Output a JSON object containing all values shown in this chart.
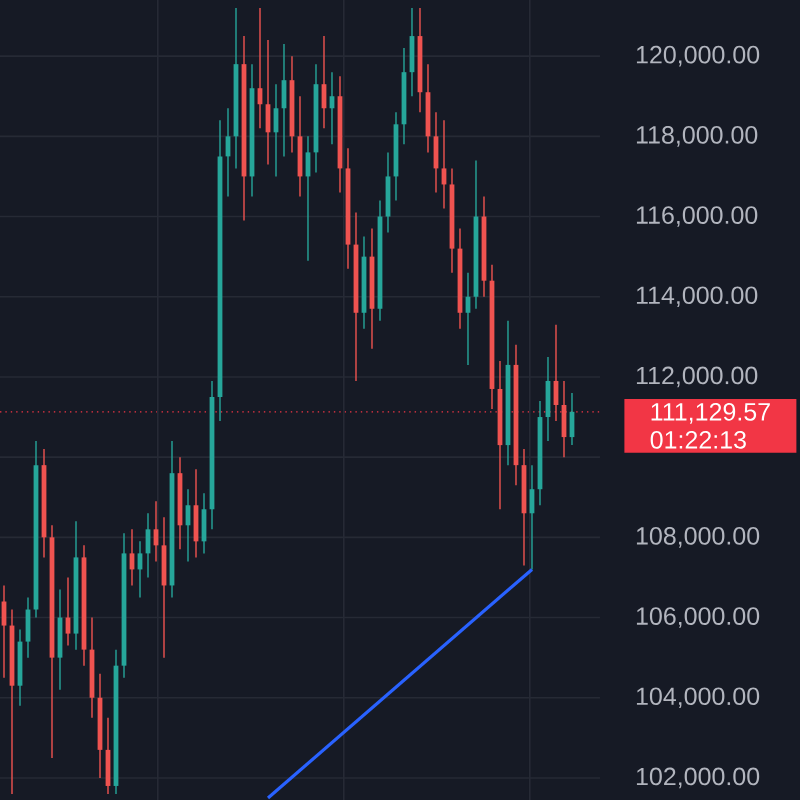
{
  "chart_data": {
    "type": "candlestick",
    "categories": [
      null,
      null,
      null,
      null,
      null,
      null,
      null,
      null,
      null,
      null,
      null,
      null,
      null,
      null,
      null,
      null,
      null,
      null,
      null,
      null,
      null,
      null,
      null,
      null,
      null,
      null,
      null,
      null,
      null,
      null,
      null,
      null,
      null,
      null,
      null,
      null,
      null,
      null,
      null,
      null,
      null,
      null,
      null,
      null,
      null,
      null,
      null,
      null,
      null,
      null,
      null,
      null,
      null,
      null,
      null,
      null,
      null,
      null,
      null,
      null,
      null,
      null,
      null,
      null,
      null,
      null,
      null,
      null,
      null,
      null,
      null,
      null
    ],
    "ohlc": [
      [
        106400,
        106800,
        104500,
        105800
      ],
      [
        105800,
        106200,
        101600,
        104300
      ],
      [
        104300,
        105700,
        103800,
        105400
      ],
      [
        105400,
        106500,
        105000,
        106200
      ],
      [
        106200,
        110400,
        106000,
        109800
      ],
      [
        109800,
        110200,
        107500,
        108000
      ],
      [
        108000,
        108300,
        102500,
        105000
      ],
      [
        105000,
        106700,
        104200,
        106000
      ],
      [
        106000,
        107000,
        105300,
        105600
      ],
      [
        105600,
        108400,
        105200,
        107500
      ],
      [
        107500,
        107800,
        104800,
        105200
      ],
      [
        105200,
        106000,
        103500,
        104000
      ],
      [
        104000,
        104600,
        102000,
        102700
      ],
      [
        102700,
        103500,
        101600,
        101800
      ],
      [
        101800,
        105200,
        101600,
        104800
      ],
      [
        104800,
        108100,
        104500,
        107600
      ],
      [
        107600,
        108200,
        106800,
        107200
      ],
      [
        107200,
        107900,
        106500,
        107600
      ],
      [
        107600,
        108600,
        107000,
        108200
      ],
      [
        108200,
        108900,
        107400,
        107800
      ],
      [
        107800,
        108500,
        105000,
        106800
      ],
      [
        106800,
        110400,
        106500,
        109600
      ],
      [
        109600,
        110000,
        107700,
        108300
      ],
      [
        108300,
        109200,
        107400,
        108800
      ],
      [
        108800,
        109700,
        107500,
        107900
      ],
      [
        107900,
        109100,
        107600,
        108700
      ],
      [
        108700,
        111900,
        108200,
        111500
      ],
      [
        111500,
        118400,
        110900,
        117500
      ],
      [
        117500,
        118700,
        116500,
        118000
      ],
      [
        118000,
        121200,
        117200,
        119800
      ],
      [
        119800,
        120500,
        115900,
        117000
      ],
      [
        117000,
        119800,
        116500,
        119200
      ],
      [
        119200,
        121200,
        118200,
        118800
      ],
      [
        118800,
        120400,
        117300,
        118100
      ],
      [
        118100,
        119300,
        117000,
        118700
      ],
      [
        118700,
        120300,
        117500,
        119400
      ],
      [
        119400,
        120000,
        117600,
        118000
      ],
      [
        118000,
        119000,
        116500,
        117000
      ],
      [
        117000,
        118000,
        114900,
        117600
      ],
      [
        117600,
        119800,
        117100,
        119300
      ],
      [
        119300,
        120500,
        118200,
        118700
      ],
      [
        118700,
        119600,
        117800,
        119000
      ],
      [
        119000,
        119500,
        116600,
        117200
      ],
      [
        117200,
        117700,
        114700,
        115300
      ],
      [
        115300,
        116100,
        111900,
        113600
      ],
      [
        113600,
        115500,
        113200,
        115000
      ],
      [
        115000,
        115700,
        112700,
        113700
      ],
      [
        113700,
        116400,
        113400,
        116000
      ],
      [
        116000,
        117600,
        115600,
        117000
      ],
      [
        117000,
        118600,
        116400,
        118300
      ],
      [
        118300,
        120200,
        117800,
        119600
      ],
      [
        119600,
        121200,
        119000,
        120500
      ],
      [
        120500,
        121200,
        118600,
        119100
      ],
      [
        119100,
        119800,
        117600,
        118000
      ],
      [
        118000,
        118600,
        116600,
        117200
      ],
      [
        117200,
        118400,
        116200,
        116800
      ],
      [
        116800,
        117200,
        114600,
        115200
      ],
      [
        115200,
        115700,
        113200,
        113600
      ],
      [
        113600,
        114600,
        112300,
        114000
      ],
      [
        114000,
        117400,
        113700,
        116000
      ],
      [
        116000,
        116500,
        114000,
        114400
      ],
      [
        114400,
        114800,
        111200,
        111700
      ],
      [
        111700,
        112400,
        108700,
        110300
      ],
      [
        110300,
        113400,
        109800,
        112300
      ],
      [
        112300,
        112800,
        109300,
        109800
      ],
      [
        109800,
        110200,
        107300,
        108600
      ],
      [
        108600,
        109800,
        107200,
        109200
      ],
      [
        109200,
        111400,
        108800,
        111000
      ],
      [
        111000,
        112500,
        110400,
        111900
      ],
      [
        111900,
        113300,
        110900,
        111300
      ],
      [
        111300,
        111900,
        110000,
        110500
      ],
      [
        110500,
        111600,
        110300,
        111130
      ]
    ],
    "series": [
      {
        "type": "line",
        "values": [
          null,
          null,
          null,
          null,
          null,
          null,
          null,
          null,
          null,
          null,
          null,
          null,
          null,
          null,
          null,
          null,
          null,
          null,
          null,
          null,
          null,
          null,
          null,
          null,
          null,
          null,
          null,
          null,
          null,
          null,
          null,
          null,
          null,
          101500,
          null,
          null,
          null,
          null,
          null,
          null,
          null,
          null,
          null,
          null,
          null,
          null,
          null,
          null,
          null,
          null,
          null,
          null,
          null,
          null,
          null,
          null,
          null,
          null,
          null,
          null,
          null,
          null,
          null,
          null,
          null,
          null,
          107200,
          null,
          null,
          null,
          null,
          null
        ],
        "color": "#2962ff"
      }
    ],
    "ylim": [
      101450,
      121400
    ],
    "yticks": [
      {
        "value": 102000,
        "label": "102,000.00"
      },
      {
        "value": 104000,
        "label": "104,000.00"
      },
      {
        "value": 106000,
        "label": "106,000.00"
      },
      {
        "value": 108000,
        "label": "108,000.00"
      },
      {
        "value": 110000,
        "label": null
      },
      {
        "value": 112000,
        "label": "112,000.00"
      },
      {
        "value": 114000,
        "label": "114,000.00"
      },
      {
        "value": 116000,
        "label": "116,000.00"
      },
      {
        "value": 118000,
        "label": "118,000.00"
      },
      {
        "value": 120000,
        "label": "120,000.00"
      }
    ],
    "grid": "y",
    "ref_lines": [
      {
        "axis": "y",
        "value": 111129.57,
        "label": "111,129.57",
        "color": "#f23645",
        "line_style": "dotted"
      }
    ],
    "annotations": [
      "01:22:13"
    ]
  }
}
